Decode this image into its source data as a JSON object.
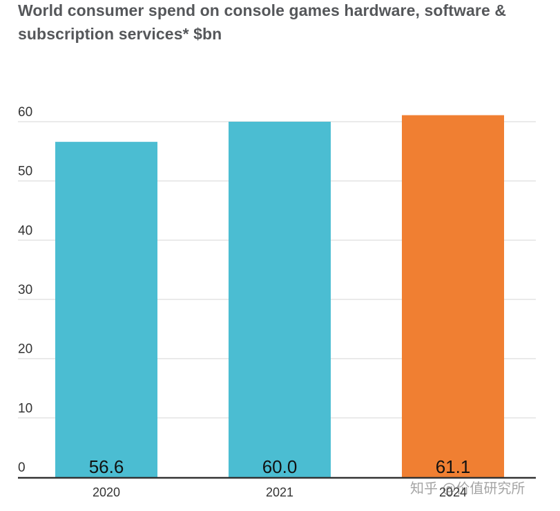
{
  "title": "World consumer spend on console games hardware, software & subscription services* $bn",
  "watermark": "知乎 @价值研究所",
  "colors": {
    "teal": "#4bbdd2",
    "orange": "#f07f32",
    "grid": "#e3e3e3",
    "axis": "#333333"
  },
  "chart_data": {
    "type": "bar",
    "title": "World consumer spend on console games hardware, software & subscription services* $bn",
    "xlabel": "",
    "ylabel": "",
    "categories": [
      "2020",
      "2021",
      "2024"
    ],
    "values": [
      56.6,
      60.0,
      61.1
    ],
    "data_labels": [
      "56.6",
      "60.0",
      "61.1"
    ],
    "bar_colors": [
      "#4bbdd2",
      "#4bbdd2",
      "#f07f32"
    ],
    "ylim": [
      0,
      60
    ],
    "yticks": [
      "0",
      "10",
      "20",
      "30",
      "40",
      "50",
      "60"
    ],
    "grid": true,
    "legend": "none"
  }
}
